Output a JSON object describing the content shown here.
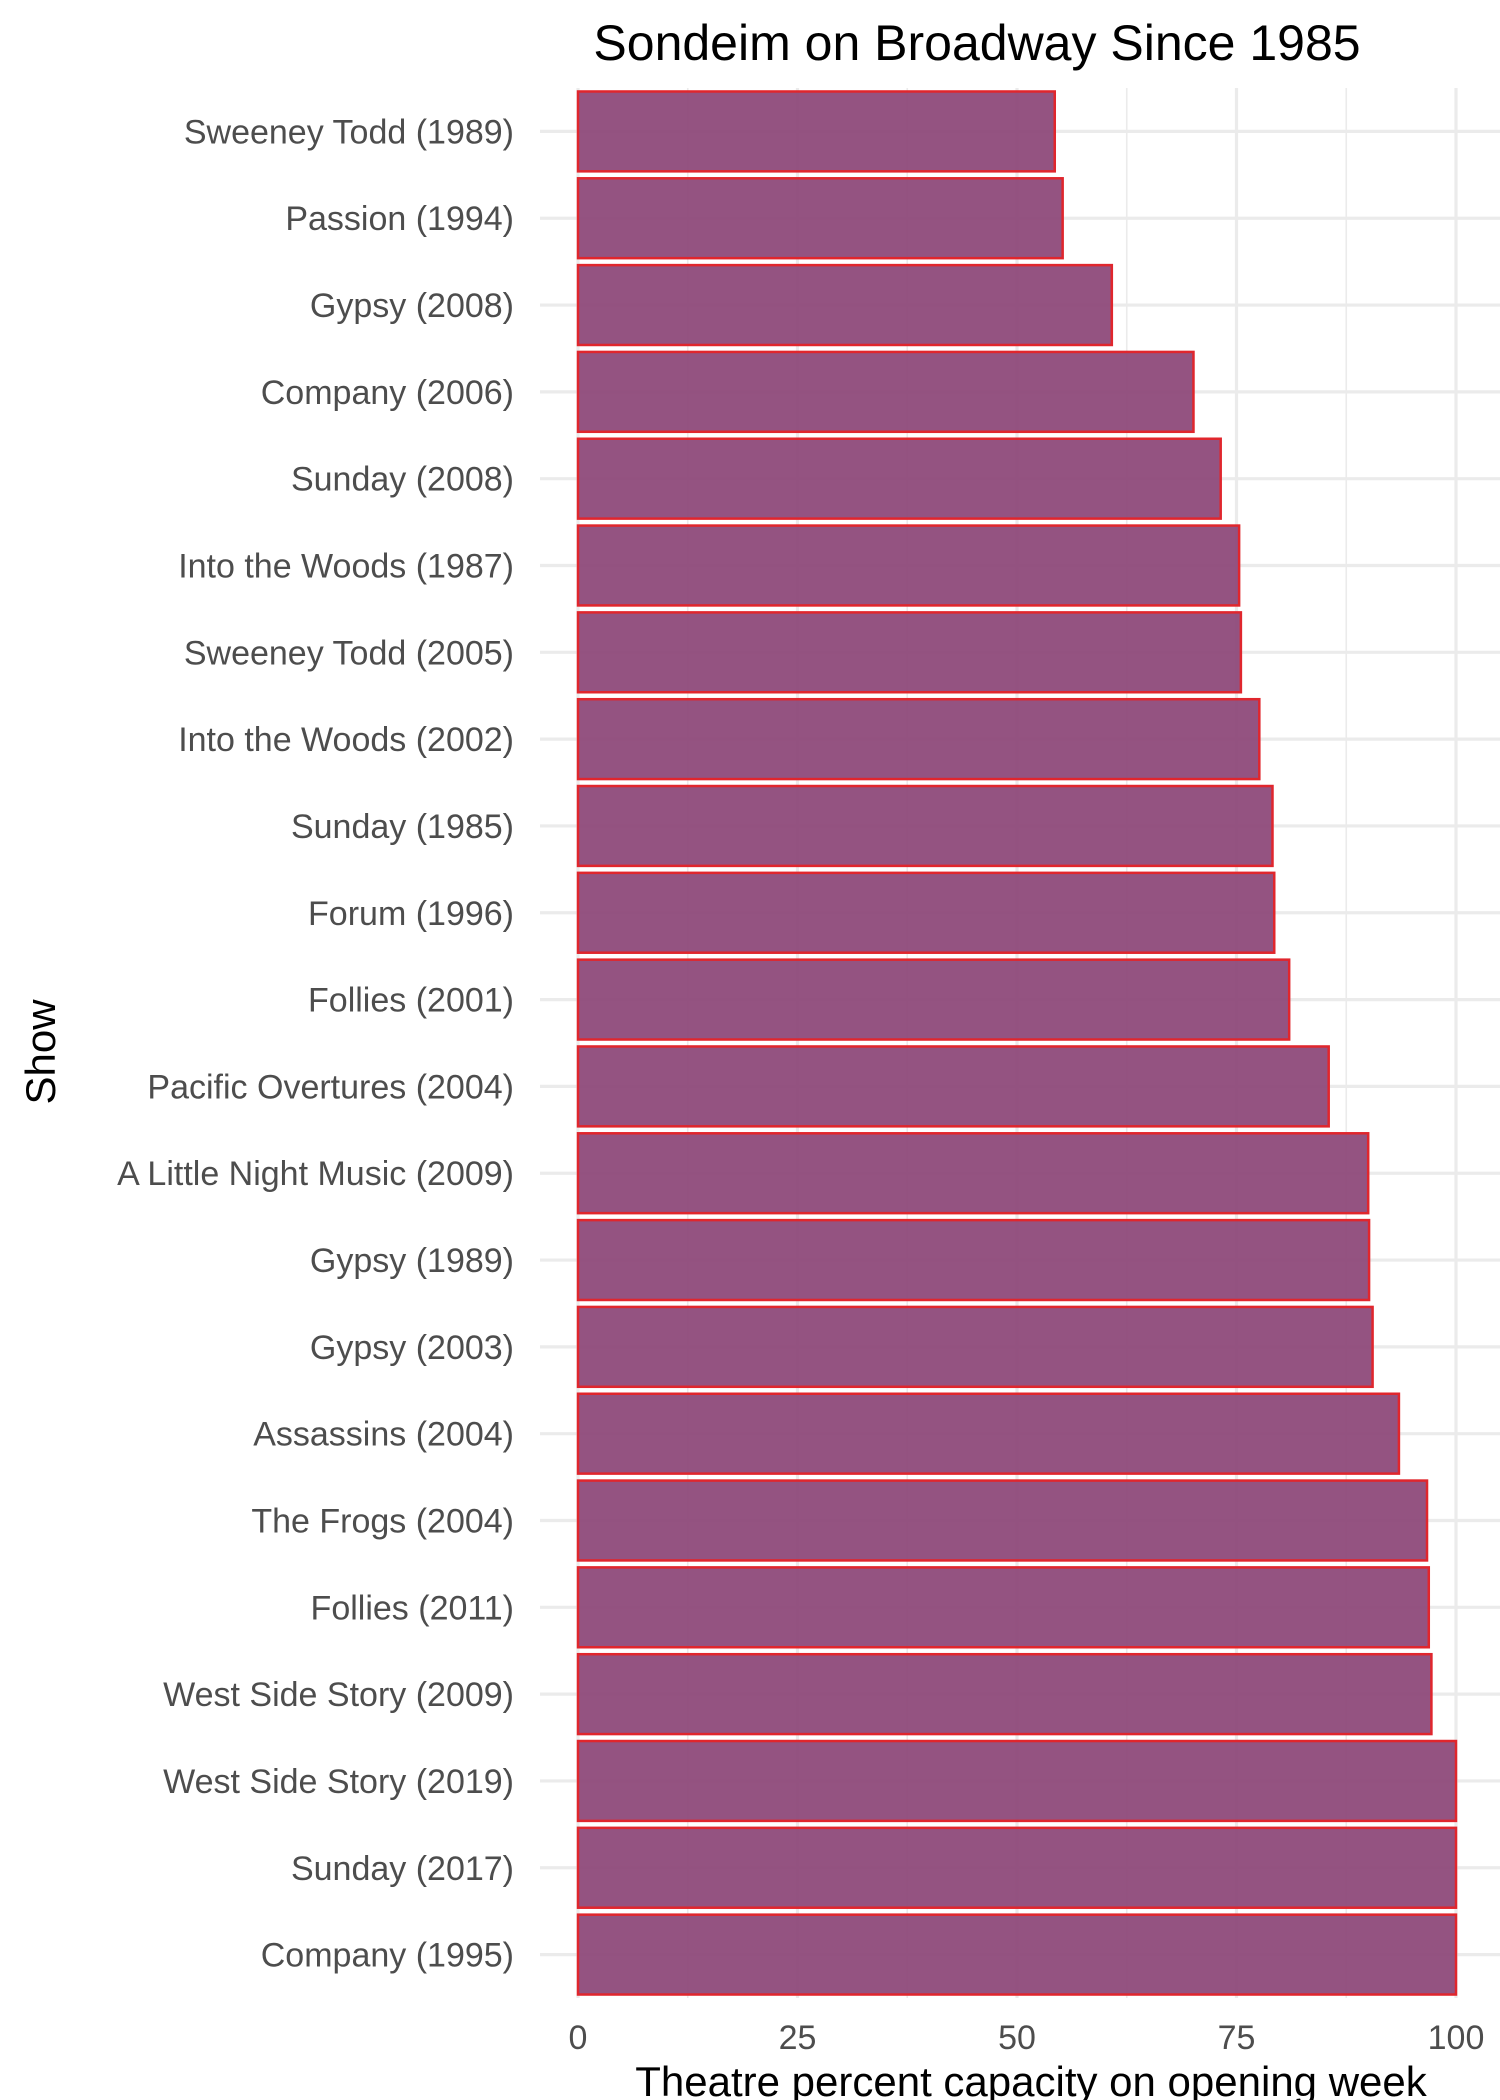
{
  "chart_data": {
    "type": "bar",
    "orientation": "horizontal",
    "title": "Sondeim on Broadway Since 1985",
    "xlabel": "Theatre percent capacity on opening week",
    "ylabel": "Show",
    "xlim": [
      0,
      100
    ],
    "x_ticks": [
      "0",
      "25",
      "50",
      "75",
      "100"
    ],
    "grid": true,
    "colors": {
      "bar_fill": "#8e4a7a",
      "bar_stroke": "#e0262d",
      "grid": "#ebebeb"
    },
    "categories": [
      "Sweeney Todd (1989)",
      "Passion (1994)",
      "Gypsy (2008)",
      "Company (2006)",
      "Sunday (2008)",
      "Into the Woods (1987)",
      "Sweeney Todd (2005)",
      "Into the Woods (2002)",
      "Sunday (1985)",
      "Forum (1996)",
      "Follies (2001)",
      "Pacific Overtures (2004)",
      "A Little Night Music (2009)",
      "Gypsy (1989)",
      "Gypsy (2003)",
      "Assassins (2004)",
      "The Frogs (2004)",
      "Follies (2011)",
      "West Side Story (2009)",
      "West Side Story (2019)",
      "Sunday (2017)",
      "Company (1995)"
    ],
    "values": [
      54.3,
      55.2,
      60.8,
      70.1,
      73.2,
      75.3,
      75.5,
      77.6,
      79.1,
      79.3,
      81.0,
      85.5,
      90.0,
      90.1,
      90.5,
      93.5,
      96.7,
      96.9,
      97.2,
      100,
      100,
      100
    ]
  }
}
